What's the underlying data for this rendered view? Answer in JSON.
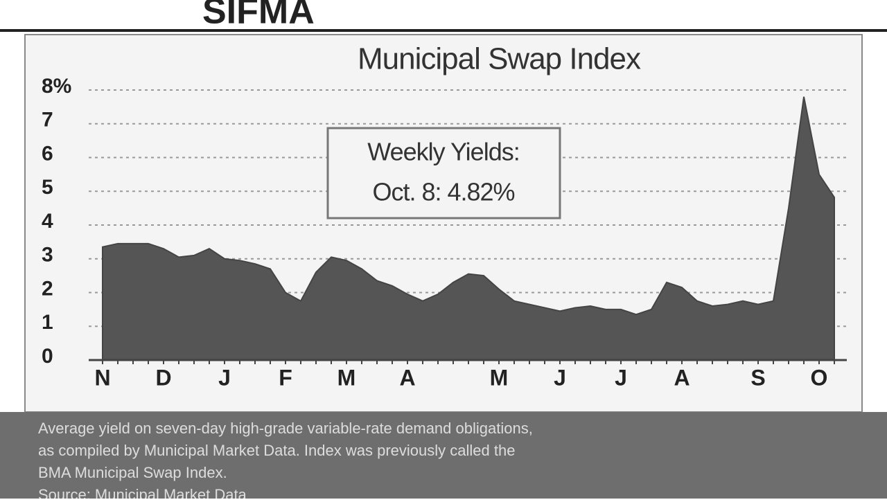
{
  "header": {
    "brand": "SIFMA"
  },
  "chart_data": {
    "type": "area",
    "title": "Municipal Swap Index",
    "annotation": [
      "Weekly Yields:",
      "Oct. 8: 4.82%"
    ],
    "categories": [
      "N",
      null,
      null,
      null,
      "D",
      null,
      null,
      null,
      "J",
      null,
      null,
      null,
      "F",
      null,
      null,
      null,
      "M",
      null,
      null,
      null,
      "A",
      null,
      null,
      null,
      null,
      null,
      "M",
      null,
      null,
      null,
      "J",
      null,
      null,
      null,
      "J",
      null,
      null,
      null,
      "A",
      null,
      null,
      null,
      null,
      "S",
      null,
      null,
      null,
      "O",
      null
    ],
    "values": [
      3.35,
      3.45,
      3.45,
      3.45,
      3.3,
      3.05,
      3.1,
      3.3,
      3.0,
      2.95,
      2.85,
      2.7,
      2.0,
      1.75,
      2.6,
      3.05,
      2.95,
      2.7,
      2.35,
      2.2,
      1.95,
      1.75,
      1.95,
      2.3,
      2.55,
      2.5,
      2.1,
      1.75,
      1.65,
      1.55,
      1.45,
      1.55,
      1.6,
      1.5,
      1.5,
      1.35,
      1.5,
      2.3,
      2.15,
      1.75,
      1.6,
      1.65,
      1.75,
      1.65,
      1.75,
      4.5,
      7.8,
      5.5,
      4.82
    ],
    "color": "#555555",
    "ylim": [
      0,
      8
    ],
    "yticks": [
      0,
      1,
      2,
      3,
      4,
      5,
      6,
      7,
      {
        "value": 8,
        "label": "8%"
      }
    ],
    "grid": true,
    "note": [
      "Average yield on seven-day high-grade variable-rate demand obligations,",
      "as compiled by Municipal Market Data. Index was previously called the",
      "BMA Municipal Swap Index.",
      "Source: Municipal Market Data"
    ]
  }
}
